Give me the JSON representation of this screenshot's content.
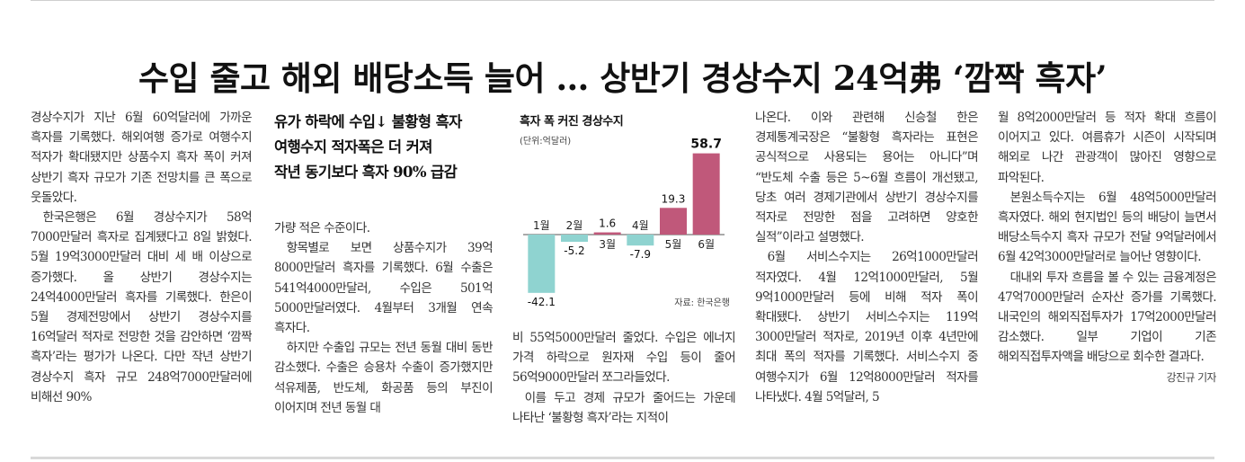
{
  "headline": "수입 줄고 해외 배당소득 늘어 … 상반기 경상수지 24억弗 ‘깜짝 흑자’",
  "subheadline": [
    "유가 하락에 수입↓ 불황형 흑자",
    "여행수지 적자폭은 더 커져",
    "작년 동기보다 흑자 90% 급감"
  ],
  "columns": {
    "col1": [
      "경상수지가 지난 6월 60억달러에 가까운 흑자를 기록했다. 해외여행 증가로 여행수지 적자가 확대됐지만 상품수지 흑자 폭이 커져 상반기 흑자 규모가 기존 전망치를 큰 폭으로 웃돌았다.",
      "한국은행은 6월 경상수지가 58억 7000만달러 흑자로 집계됐다고 8일 밝혔다. 5월 19억3000만달러 대비 세 배 이상으로 증가했다. 올 상반기 경상수지는 24억4000만달러 흑자를 기록했다. 한은이 5월 경제전망에서 상반기 경상수지를 16억달러 적자로 전망한 것을 감안하면 ‘깜짝 흑자’라는 평가가 나온다. 다만 작년 상반기 경상수지 흑자 규모 248억7000만달러에 비해선 90%"
    ],
    "col2": [
      "가량 적은 수준이다.",
      "항목별로 보면 상품수지가 39억 8000만달러 흑자를 기록했다. 6월 수출은 541억4000만달러, 수입은 501억 5000만달러였다. 4월부터 3개월 연속 흑자다.",
      "하지만 수출입 규모는 전년 동월 대비 동반 감소했다. 수출은 승용차 수출이 증가했지만 석유제품, 반도체, 화공품 등의 부진이 이어지며 전년 동월 대"
    ],
    "col3": [
      "비 55억5000만달러 줄었다. 수입은 에너지 가격 하락으로 원자재 수입 등이 줄어 56억9000만달러 쪼그라들었다.",
      "이를 두고 경제 규모가 줄어드는 가운데 나타난 ‘불황형 흑자’라는 지적이"
    ],
    "col4": [
      "나온다. 이와 관련해 신승철 한은 경제통계국장은 “불황형 흑자라는 표현은 공식적으로 사용되는 용어는 아니다”며 “반도체 수출 등은 5~6월 흐름이 개선됐고, 당초 여러 경제기관에서 상반기 경상수지를 적자로 전망한 점을 고려하면 양호한 실적”이라고 설명했다.",
      "6월 서비스수지는 26억1000만달러 적자였다. 4월 12억1000만달러, 5월 9억1000만달러 등에 비해 적자 폭이 확대됐다. 상반기 서비스수지는 119억 3000만달러 적자로, 2019년 이후 4년만에 최대 폭의 적자를 기록했다. 서비스수지 중 여행수지가 6월 12억8000만달러 적자를 나타냈다. 4월 5억달러, 5"
    ],
    "col5": [
      "월 8억2000만달러 등 적자 확대 흐름이 이어지고 있다. 여름휴가 시즌이 시작되며 해외로 나간 관광객이 많아진 영향으로 파악된다.",
      "본원소득수지는 6월 48억5000만달러 흑자였다. 해외 현지법인 등의 배당이 늘면서 배당소득수지 흑자 규모가 전달 9억달러에서 6월 42억3000만달러로 늘어난 영향이다.",
      "대내외 투자 흐름을 볼 수 있는 금융계정은 47억7000만달러 순자산 증가를 기록했다. 내국인의 해외직접투자가 17억2000만달러 감소했다. 일부 기업이 기존 해외직접투자액을 배당으로 회수한 결과다."
    ]
  },
  "byline": "강진규 기자",
  "colors": {
    "positive": "#c0587a",
    "negative": "#8fd3d0",
    "text": "#333333"
  },
  "chart_data": {
    "type": "bar",
    "title": "흑자 폭 커진 경상수지",
    "unit": "(단위:억달러)",
    "source": "자료: 한국은행",
    "categories": [
      "1월",
      "2월",
      "3월",
      "4월",
      "5월",
      "6월"
    ],
    "values": [
      -42.1,
      -5.2,
      1.6,
      -7.9,
      19.3,
      58.7
    ],
    "value_labels": [
      "-42.1",
      "-5.2",
      "1.6",
      "-7.9",
      "19.3",
      "58.7"
    ],
    "ylim": [
      -45,
      60
    ],
    "grid": false
  }
}
